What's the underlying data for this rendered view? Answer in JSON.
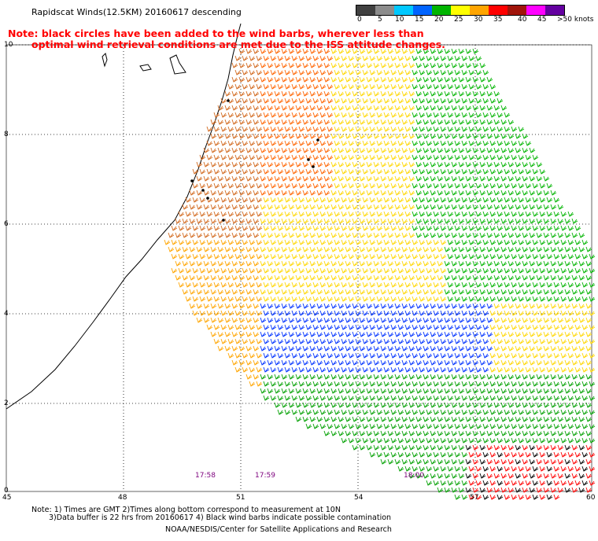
{
  "title": "Rapidscat Winds(12.5KM) 20160617 descending",
  "note_line1": "Note: black circles have been added to the wind barbs, wherever less than",
  "note_line2": "optimal wind retrieval conditions are met due to the ISS attitude changes.",
  "colorbar": {
    "labels": [
      "0",
      "5",
      "10",
      "15",
      "20",
      "25",
      "30",
      "35",
      "40",
      "45",
      ">50 knots"
    ],
    "colors": [
      "#404040",
      "#8c8c8c",
      "#00c8ff",
      "#0064ff",
      "#00b400",
      "#ffff00",
      "#ffa500",
      "#ff0000",
      "#a0140a",
      "#ff00ff",
      "#6400a0"
    ]
  },
  "y_axis": {
    "labels": [
      "10",
      "8",
      "6",
      "4",
      "2",
      "0"
    ]
  },
  "x_axis": {
    "labels": [
      "45",
      "48",
      "51",
      "54",
      "57",
      "60"
    ]
  },
  "time_labels": [
    "17:58",
    "17:59",
    "18:00"
  ],
  "footnote_line1": "Note: 1) Times are GMT 2)Times along bottom correspond to measurement at 10N",
  "footnote_line2": "3)Data buffer is 22 hrs from 20160617 4) Black wind barbs indicate possible contamination",
  "credit": "NOAA/NESDIS/Center for Satellite Applications and Research"
}
